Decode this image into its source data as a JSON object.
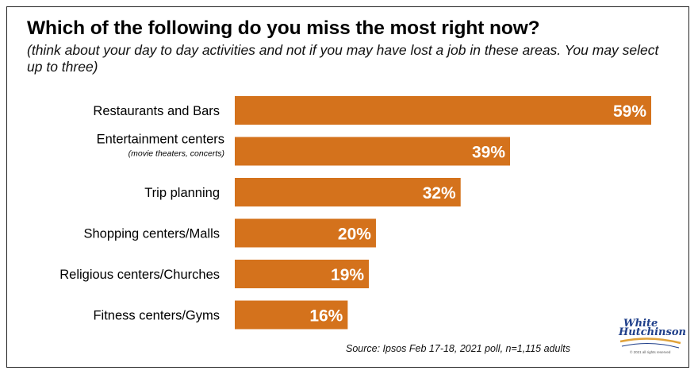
{
  "chart_data": {
    "type": "bar",
    "orientation": "horizontal",
    "title": "Which of the following do you miss the most right now?",
    "subtitle": "(think about your day to day activities and not if you may have lost a job in these areas.  You may select up to three)",
    "categories": [
      "Restaurants and Bars",
      "Entertainment centers",
      "Trip planning",
      "Shopping centers/Malls",
      "Religious centers/Churches",
      "Fitness centers/Gyms"
    ],
    "category_notes": [
      "",
      "(movie theaters, concerts)",
      "",
      "",
      "",
      ""
    ],
    "values": [
      59,
      39,
      32,
      20,
      19,
      16
    ],
    "data_labels": [
      "59%",
      "39%",
      "32%",
      "20%",
      "19%",
      "16%"
    ],
    "unit": "%",
    "xlim": [
      0,
      59
    ],
    "bar_color": "#d4721c",
    "grid": false,
    "legend": "none"
  },
  "source": "Source: Ipsos Feb 17-18, 2021 poll, n=1,115 adults",
  "logo": {
    "line1": "White",
    "line2": "Hutchinson",
    "fine_print": "© 2021 all rights reserved",
    "color": "#1f3f8a"
  }
}
